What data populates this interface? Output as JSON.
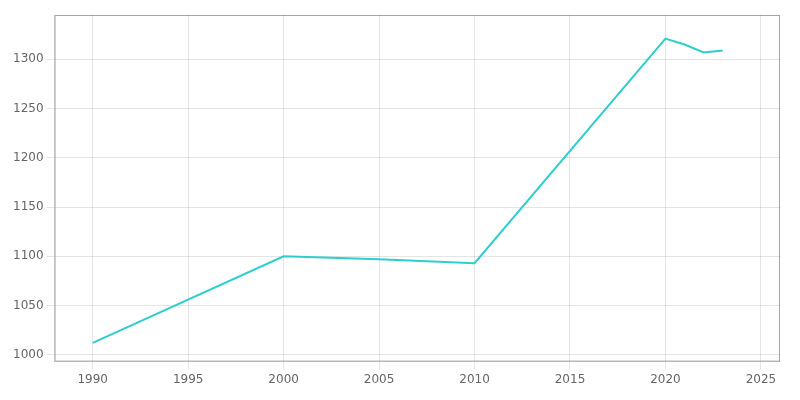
{
  "chart_data": {
    "type": "line",
    "x": [
      1990,
      2000,
      2005,
      2010,
      2020,
      2021,
      2022,
      2023
    ],
    "values": [
      1012,
      1100,
      1097,
      1093,
      1321,
      1315,
      1307,
      1309
    ],
    "color": "#2ECECE",
    "xlim": [
      1988,
      2026
    ],
    "ylim": [
      993,
      1345
    ],
    "xticks": [
      1990,
      1995,
      2000,
      2005,
      2010,
      2015,
      2020,
      2025
    ],
    "yticks": [
      1000,
      1050,
      1100,
      1150,
      1200,
      1250,
      1300
    ],
    "grid": true
  }
}
